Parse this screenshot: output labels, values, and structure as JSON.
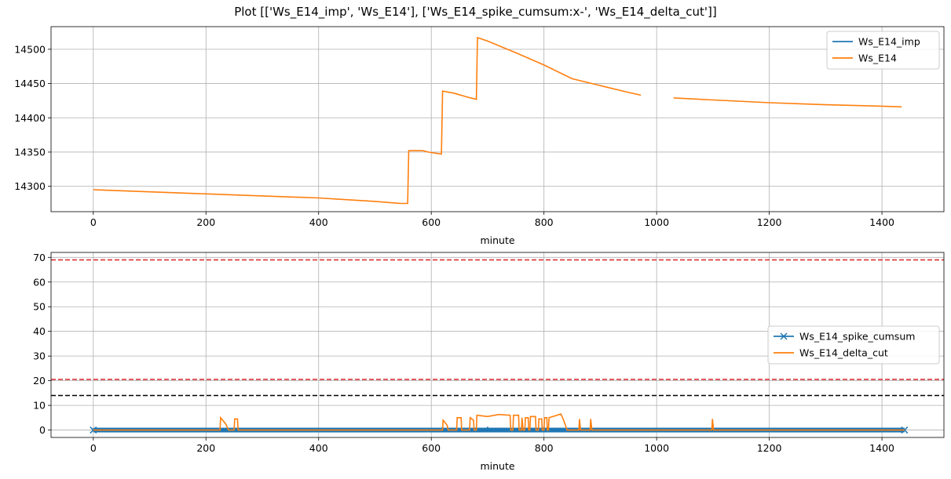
{
  "figure": {
    "title": "Plot [['Ws_E14_imp', 'Ws_E14'], ['Ws_E14_spike_cumsum:x-', 'Ws_E14_delta_cut']]"
  },
  "chart_data": [
    {
      "type": "line",
      "xlabel": "minute",
      "ylabel": "",
      "xlim": [
        -75,
        1510
      ],
      "ylim": [
        14263,
        14533
      ],
      "xticks": [
        0,
        200,
        400,
        600,
        800,
        1000,
        1200,
        1400
      ],
      "yticks": [
        14300,
        14350,
        14400,
        14450,
        14500
      ],
      "grid": true,
      "legend": "upper right",
      "series": [
        {
          "name": "Ws_E14_imp",
          "color": "#1f77b4",
          "marker": "",
          "points": []
        },
        {
          "name": "Ws_E14",
          "color": "#ff7f0e",
          "marker": "",
          "points": [
            [
              0,
              14295
            ],
            [
              100,
              14292
            ],
            [
              200,
              14289
            ],
            [
              300,
              14286
            ],
            [
              400,
              14283
            ],
            [
              500,
              14278
            ],
            [
              545,
              14275
            ],
            [
              558,
              14275
            ],
            [
              560,
              14352
            ],
            [
              585,
              14352
            ],
            [
              595,
              14350
            ],
            [
              618,
              14347
            ],
            [
              620,
              14439
            ],
            [
              640,
              14436
            ],
            [
              665,
              14430
            ],
            [
              680,
              14427
            ],
            [
              682,
              14517
            ],
            [
              700,
              14512
            ],
            [
              750,
              14495
            ],
            [
              800,
              14477
            ],
            [
              850,
              14457
            ],
            [
              900,
              14447
            ],
            [
              950,
              14437
            ],
            [
              972,
              14433
            ],
            null,
            [
              1030,
              14429
            ],
            [
              1100,
              14426
            ],
            [
              1200,
              14422
            ],
            [
              1300,
              14419
            ],
            [
              1400,
              14417
            ],
            [
              1435,
              14416
            ]
          ]
        }
      ]
    },
    {
      "type": "line",
      "xlabel": "minute",
      "ylabel": "",
      "xlim": [
        -75,
        1510
      ],
      "ylim": [
        -3,
        72
      ],
      "xticks": [
        0,
        200,
        400,
        600,
        800,
        1000,
        1200,
        1400
      ],
      "yticks": [
        0,
        10,
        20,
        30,
        40,
        50,
        60,
        70
      ],
      "grid": true,
      "legend": "center right",
      "hlines": [
        {
          "y": 69,
          "color": "#d62728",
          "style": "dashed"
        },
        {
          "y": 20.5,
          "color": "#d62728",
          "style": "dashed"
        },
        {
          "y": 14,
          "color": "#000000",
          "style": "dashed"
        }
      ],
      "series": [
        {
          "name": "Ws_E14_spike_cumsum",
          "color": "#1f77b4",
          "marker": "x",
          "points": [
            [
              0,
              0
            ],
            [
              1440,
              0
            ]
          ],
          "spikes": [
            [
              225,
              0.8
            ],
            [
              620,
              1.2
            ],
            [
              640,
              0.9
            ],
            [
              700,
              1.3
            ],
            [
              760,
              1.1
            ],
            [
              800,
              1.4
            ],
            [
              840,
              0.9
            ],
            [
              1100,
              0.5
            ]
          ]
        },
        {
          "name": "Ws_E14_delta_cut",
          "color": "#ff7f0e",
          "marker": "",
          "points": [
            [
              0,
              0
            ],
            [
              225,
              0
            ],
            [
              226,
              5
            ],
            [
              235,
              2.5
            ],
            [
              240,
              0
            ],
            [
              250,
              0
            ],
            [
              251,
              4.5
            ],
            [
              256,
              4.5
            ],
            [
              257,
              0
            ],
            [
              620,
              0
            ],
            [
              621,
              4
            ],
            [
              628,
              2
            ],
            [
              630,
              0
            ],
            [
              645,
              0
            ],
            [
              646,
              5
            ],
            [
              653,
              5
            ],
            [
              654,
              0
            ],
            [
              668,
              0
            ],
            [
              669,
              5
            ],
            [
              675,
              4
            ],
            [
              676,
              0
            ],
            [
              680,
              0
            ],
            [
              681,
              6
            ],
            [
              700,
              5.5
            ],
            [
              720,
              6.3
            ],
            [
              740,
              6
            ],
            [
              741,
              0
            ],
            [
              745,
              0
            ],
            [
              746,
              6
            ],
            [
              755,
              6
            ],
            [
              756,
              0
            ],
            [
              760,
              0
            ],
            [
              761,
              5
            ],
            [
              763,
              0
            ],
            [
              766,
              0
            ],
            [
              767,
              5
            ],
            [
              772,
              5
            ],
            [
              773,
              0
            ],
            [
              775,
              0
            ],
            [
              776,
              5.5
            ],
            [
              785,
              5.5
            ],
            [
              786,
              0
            ],
            [
              790,
              0
            ],
            [
              791,
              4.5
            ],
            [
              796,
              4.5
            ],
            [
              797,
              0
            ],
            [
              800,
              0
            ],
            [
              801,
              5
            ],
            [
              805,
              5
            ],
            [
              806,
              0
            ],
            [
              808,
              0
            ],
            [
              809,
              5
            ],
            [
              830,
              6.5
            ],
            [
              835,
              4
            ],
            [
              841,
              0
            ],
            [
              862,
              0
            ],
            [
              863,
              4.5
            ],
            [
              865,
              0
            ],
            [
              882,
              0
            ],
            [
              883,
              4.5
            ],
            [
              885,
              0
            ],
            [
              1098,
              0
            ],
            [
              1099,
              4.5
            ],
            [
              1101,
              0
            ],
            [
              1440,
              0
            ]
          ]
        }
      ]
    }
  ]
}
